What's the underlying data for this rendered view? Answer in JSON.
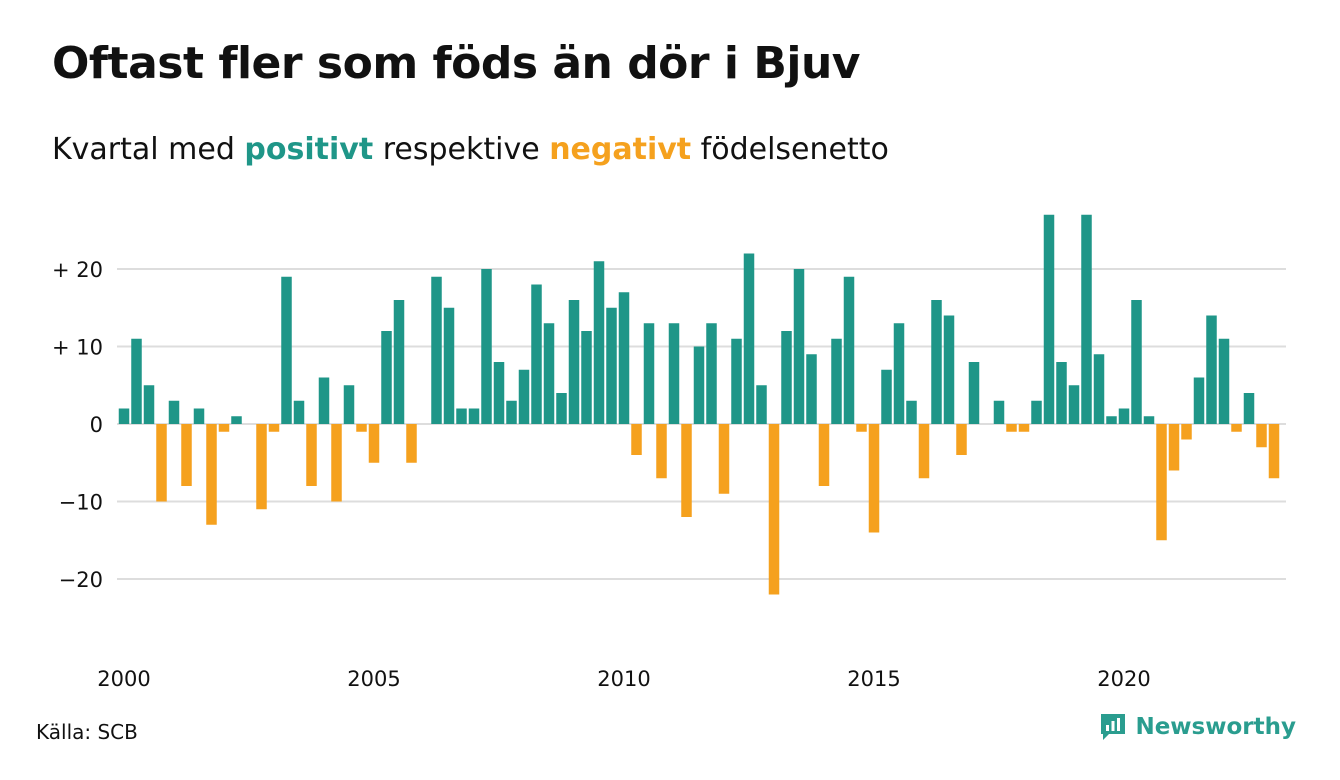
{
  "title": "Oftast fler som föds än dör i Bjuv",
  "subtitle": {
    "prefix": "Kvartal med ",
    "positive": "positivt",
    "middle": " respektive ",
    "negative": "negativt",
    "suffix": " födelsenetto"
  },
  "source": "Källa: SCB",
  "brand": {
    "name": "Newsworthy",
    "icon": "newsworthy-logo-icon",
    "color": "#2a9d8f"
  },
  "colors": {
    "positive": "#1f9688",
    "negative": "#f5a11e",
    "grid": "#dddddd",
    "text": "#111111"
  },
  "chart_data": {
    "type": "bar",
    "title": "Oftast fler som föds än dör i Bjuv",
    "subtitle": "Kvartal med positivt respektive negativt födelsenetto",
    "xlabel": "",
    "ylabel": "",
    "x_start": 2000,
    "periods_per_year": 4,
    "x_ticks": [
      "2000",
      "2005",
      "2010",
      "2015",
      "2020"
    ],
    "y_ticks": [
      {
        "value": 20,
        "label": "+ 20"
      },
      {
        "value": 10,
        "label": "+ 10"
      },
      {
        "value": 0,
        "label": "0"
      },
      {
        "value": -10,
        "label": "−10"
      },
      {
        "value": -20,
        "label": "−20"
      }
    ],
    "ylim": [
      -27,
      27
    ],
    "grid": true,
    "values": [
      2,
      11,
      5,
      -10,
      3,
      -8,
      2,
      -13,
      -1,
      1,
      0,
      -11,
      -1,
      19,
      3,
      -8,
      6,
      -10,
      5,
      -1,
      -5,
      12,
      16,
      -5,
      0,
      19,
      15,
      2,
      2,
      20,
      8,
      3,
      7,
      18,
      13,
      4,
      16,
      12,
      21,
      15,
      17,
      -4,
      13,
      -7,
      13,
      -12,
      10,
      13,
      -9,
      11,
      22,
      5,
      -22,
      12,
      20,
      9,
      -8,
      11,
      19,
      -1,
      -14,
      7,
      13,
      3,
      -7,
      16,
      14,
      -4,
      8,
      0,
      3,
      -1,
      -1,
      3,
      27,
      8,
      5,
      27,
      9,
      1,
      2,
      16,
      1,
      -15,
      -6,
      -2,
      6,
      14,
      11,
      -1,
      4,
      -3,
      -7
    ]
  }
}
